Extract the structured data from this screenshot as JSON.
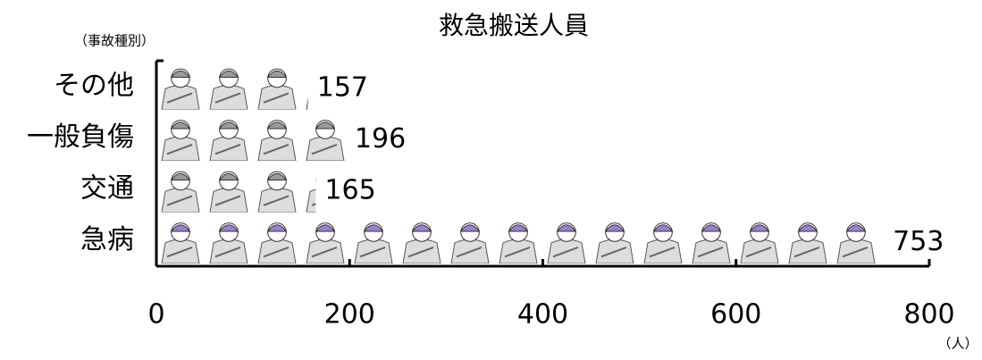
{
  "chart_data": {
    "type": "bar",
    "orientation": "horizontal",
    "title": "救急搬送人員",
    "y_label": "（事故種別）",
    "x_label": "（人）",
    "categories": [
      "その他",
      "一般負傷",
      "交通",
      "急病"
    ],
    "values": [
      157,
      196,
      165,
      753
    ],
    "colors": [
      "#9a9a9a",
      "#9a9a9a",
      "#9a9a9a",
      "#9b7fd0"
    ],
    "xlim": [
      0,
      800
    ],
    "xticks": [
      0,
      200,
      400,
      600,
      800
    ]
  }
}
